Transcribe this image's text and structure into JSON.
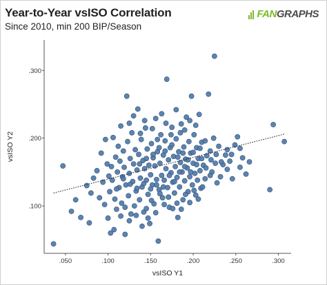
{
  "header": {
    "title": "Year-to-Year vsISO Correlation",
    "subtitle": "Since 2010, min 200 BIP/Season"
  },
  "logo": {
    "icon": "fangraphs-bars-icon",
    "fan_text": "FAN",
    "graphs_text": "GRAPHS",
    "fan_color": "#7cba2a",
    "graphs_color": "#4a4a4a"
  },
  "chart_data": {
    "type": "scatter",
    "title": "Year-to-Year vsISO Correlation",
    "subtitle": "Since 2010, min 200 BIP/Season",
    "xlabel": "vsISO Y1",
    "ylabel": "vsISO Y2",
    "xlim": [
      0.025,
      0.315
    ],
    "ylim": [
      0.03,
      0.345
    ],
    "x_ticks": [
      0.05,
      0.1,
      0.15,
      0.2,
      0.25,
      0.3
    ],
    "x_tick_labels": [
      ".050",
      ".100",
      ".150",
      ".200",
      ".250",
      ".300"
    ],
    "y_ticks": [
      0.1,
      0.2,
      0.3
    ],
    "y_tick_labels": [
      ".100",
      ".200",
      ".300"
    ],
    "grid": false,
    "point_color": "#4f79a8",
    "point_edge_color": "#2e4f78",
    "trendline": {
      "style": "dotted",
      "color": "#222222",
      "x": [
        0.036,
        0.307
      ],
      "y": [
        0.119,
        0.206
      ]
    },
    "points": [
      [
        0.036,
        0.044
      ],
      [
        0.047,
        0.159
      ],
      [
        0.057,
        0.092
      ],
      [
        0.062,
        0.109
      ],
      [
        0.068,
        0.083
      ],
      [
        0.075,
        0.13
      ],
      [
        0.078,
        0.075
      ],
      [
        0.08,
        0.119
      ],
      [
        0.083,
        0.141
      ],
      [
        0.087,
        0.152
      ],
      [
        0.09,
        0.112
      ],
      [
        0.092,
        0.178
      ],
      [
        0.094,
        0.135
      ],
      [
        0.096,
        0.102
      ],
      [
        0.097,
        0.198
      ],
      [
        0.099,
        0.162
      ],
      [
        0.1,
        0.082
      ],
      [
        0.101,
        0.144
      ],
      [
        0.102,
        0.121
      ],
      [
        0.103,
        0.06
      ],
      [
        0.104,
        0.158
      ],
      [
        0.105,
        0.138
      ],
      [
        0.106,
        0.201
      ],
      [
        0.107,
        0.065
      ],
      [
        0.108,
        0.11
      ],
      [
        0.109,
        0.172
      ],
      [
        0.11,
        0.095
      ],
      [
        0.111,
        0.15
      ],
      [
        0.112,
        0.188
      ],
      [
        0.113,
        0.127
      ],
      [
        0.114,
        0.166
      ],
      [
        0.115,
        0.218
      ],
      [
        0.116,
        0.104
      ],
      [
        0.117,
        0.143
      ],
      [
        0.118,
        0.181
      ],
      [
        0.119,
        0.157
      ],
      [
        0.12,
        0.058
      ],
      [
        0.121,
        0.131
      ],
      [
        0.122,
        0.262
      ],
      [
        0.123,
        0.195
      ],
      [
        0.124,
        0.115
      ],
      [
        0.125,
        0.148
      ],
      [
        0.126,
        0.17
      ],
      [
        0.127,
        0.088
      ],
      [
        0.128,
        0.208
      ],
      [
        0.129,
        0.136
      ],
      [
        0.13,
        0.162
      ],
      [
        0.131,
        0.1
      ],
      [
        0.132,
        0.183
      ],
      [
        0.133,
        0.122
      ],
      [
        0.134,
        0.153
      ],
      [
        0.135,
        0.243
      ],
      [
        0.136,
        0.176
      ],
      [
        0.137,
        0.109
      ],
      [
        0.138,
        0.141
      ],
      [
        0.139,
        0.198
      ],
      [
        0.14,
        0.128
      ],
      [
        0.141,
        0.167
      ],
      [
        0.142,
        0.091
      ],
      [
        0.143,
        0.155
      ],
      [
        0.144,
        0.215
      ],
      [
        0.145,
        0.138
      ],
      [
        0.146,
        0.184
      ],
      [
        0.147,
        0.117
      ],
      [
        0.148,
        0.16
      ],
      [
        0.149,
        0.074
      ],
      [
        0.15,
        0.146
      ],
      [
        0.151,
        0.192
      ],
      [
        0.152,
        0.131
      ],
      [
        0.153,
        0.171
      ],
      [
        0.154,
        0.103
      ],
      [
        0.155,
        0.159
      ],
      [
        0.156,
        0.229
      ],
      [
        0.157,
        0.139
      ],
      [
        0.158,
        0.18
      ],
      [
        0.159,
        0.048
      ],
      [
        0.16,
        0.124
      ],
      [
        0.161,
        0.163
      ],
      [
        0.162,
        0.205
      ],
      [
        0.163,
        0.145
      ],
      [
        0.164,
        0.112
      ],
      [
        0.165,
        0.175
      ],
      [
        0.166,
        0.138
      ],
      [
        0.167,
        0.196
      ],
      [
        0.168,
        0.155
      ],
      [
        0.169,
        0.287
      ],
      [
        0.17,
        0.127
      ],
      [
        0.171,
        0.168
      ],
      [
        0.172,
        0.098
      ],
      [
        0.173,
        0.186
      ],
      [
        0.174,
        0.149
      ],
      [
        0.175,
        0.216
      ],
      [
        0.176,
        0.135
      ],
      [
        0.177,
        0.173
      ],
      [
        0.178,
        0.119
      ],
      [
        0.179,
        0.158
      ],
      [
        0.18,
        0.199
      ],
      [
        0.181,
        0.142
      ],
      [
        0.182,
        0.083
      ],
      [
        0.183,
        0.18
      ],
      [
        0.184,
        0.128
      ],
      [
        0.185,
        0.164
      ],
      [
        0.186,
        0.221
      ],
      [
        0.187,
        0.15
      ],
      [
        0.188,
        0.109
      ],
      [
        0.189,
        0.187
      ],
      [
        0.19,
        0.137
      ],
      [
        0.191,
        0.169
      ],
      [
        0.192,
        0.231
      ],
      [
        0.193,
        0.156
      ],
      [
        0.194,
        0.121
      ],
      [
        0.195,
        0.195
      ],
      [
        0.196,
        0.143
      ],
      [
        0.197,
        0.178
      ],
      [
        0.198,
        0.262
      ],
      [
        0.199,
        0.131
      ],
      [
        0.2,
        0.163
      ],
      [
        0.201,
        0.205
      ],
      [
        0.202,
        0.148
      ],
      [
        0.203,
        0.116
      ],
      [
        0.204,
        0.186
      ],
      [
        0.205,
        0.138
      ],
      [
        0.206,
        0.17
      ],
      [
        0.207,
        0.235
      ],
      [
        0.208,
        0.152
      ],
      [
        0.209,
        0.126
      ],
      [
        0.21,
        0.194
      ],
      [
        0.212,
        0.16
      ],
      [
        0.214,
        0.14
      ],
      [
        0.216,
        0.174
      ],
      [
        0.218,
        0.265
      ],
      [
        0.22,
        0.181
      ],
      [
        0.222,
        0.15
      ],
      [
        0.224,
        0.2
      ],
      [
        0.225,
        0.321
      ],
      [
        0.226,
        0.163
      ],
      [
        0.228,
        0.134
      ],
      [
        0.23,
        0.188
      ],
      [
        0.232,
        0.143
      ],
      [
        0.235,
        0.161
      ],
      [
        0.238,
        0.175
      ],
      [
        0.24,
        0.154
      ],
      [
        0.243,
        0.166
      ],
      [
        0.246,
        0.14
      ],
      [
        0.249,
        0.19
      ],
      [
        0.252,
        0.202
      ],
      [
        0.255,
        0.157
      ],
      [
        0.258,
        0.171
      ],
      [
        0.262,
        0.147
      ],
      [
        0.266,
        0.165
      ],
      [
        0.29,
        0.124
      ],
      [
        0.294,
        0.22
      ],
      [
        0.307,
        0.195
      ],
      [
        0.125,
        0.222
      ],
      [
        0.13,
        0.233
      ],
      [
        0.138,
        0.207
      ],
      [
        0.143,
        0.226
      ],
      [
        0.152,
        0.214
      ],
      [
        0.158,
        0.198
      ],
      [
        0.163,
        0.236
      ],
      [
        0.168,
        0.222
      ],
      [
        0.174,
        0.205
      ],
      [
        0.18,
        0.242
      ],
      [
        0.185,
        0.208
      ],
      [
        0.19,
        0.212
      ],
      [
        0.196,
        0.226
      ],
      [
        0.203,
        0.219
      ],
      [
        0.145,
        0.096
      ],
      [
        0.151,
        0.108
      ],
      [
        0.156,
        0.09
      ],
      [
        0.161,
        0.118
      ],
      [
        0.166,
        0.102
      ],
      [
        0.171,
        0.113
      ],
      [
        0.176,
        0.096
      ],
      [
        0.181,
        0.104
      ],
      [
        0.186,
        0.095
      ],
      [
        0.191,
        0.117
      ],
      [
        0.196,
        0.105
      ],
      [
        0.201,
        0.123
      ],
      [
        0.206,
        0.11
      ],
      [
        0.211,
        0.128
      ],
      [
        0.115,
        0.085
      ],
      [
        0.12,
        0.098
      ],
      [
        0.125,
        0.078
      ],
      [
        0.133,
        0.086
      ],
      [
        0.14,
        0.07
      ],
      [
        0.147,
        0.082
      ],
      [
        0.11,
        0.125
      ],
      [
        0.118,
        0.14
      ],
      [
        0.126,
        0.132
      ],
      [
        0.134,
        0.126
      ],
      [
        0.142,
        0.133
      ],
      [
        0.15,
        0.125
      ],
      [
        0.157,
        0.131
      ],
      [
        0.165,
        0.128
      ],
      [
        0.172,
        0.145
      ],
      [
        0.178,
        0.136
      ],
      [
        0.184,
        0.15
      ],
      [
        0.19,
        0.158
      ],
      [
        0.197,
        0.15
      ],
      [
        0.204,
        0.161
      ],
      [
        0.21,
        0.17
      ],
      [
        0.215,
        0.156
      ],
      [
        0.22,
        0.145
      ],
      [
        0.227,
        0.176
      ],
      [
        0.233,
        0.165
      ],
      [
        0.24,
        0.183
      ],
      [
        0.245,
        0.176
      ],
      [
        0.255,
        0.185
      ],
      [
        0.137,
        0.162
      ],
      [
        0.145,
        0.17
      ],
      [
        0.153,
        0.176
      ],
      [
        0.16,
        0.186
      ],
      [
        0.167,
        0.181
      ],
      [
        0.175,
        0.19
      ],
      [
        0.182,
        0.172
      ],
      [
        0.188,
        0.178
      ],
      [
        0.194,
        0.168
      ],
      [
        0.2,
        0.179
      ],
      [
        0.208,
        0.185
      ],
      [
        0.214,
        0.196
      ],
      [
        0.221,
        0.168
      ]
    ]
  }
}
